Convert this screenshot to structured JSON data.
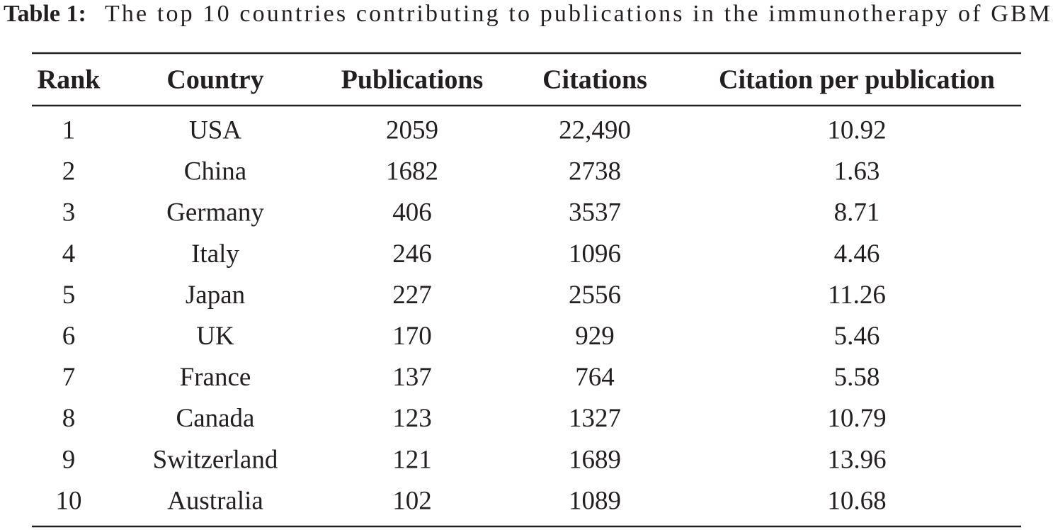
{
  "caption": {
    "label": "Table 1:",
    "text": "The top 10 countries contributing to publications in the immunotherapy of GBM"
  },
  "table": {
    "header": [
      "Rank",
      "Country",
      "Publications",
      "Citations",
      "Citation per publication"
    ],
    "rows": [
      [
        "1",
        "USA",
        "2059",
        "22,490",
        "10.92"
      ],
      [
        "2",
        "China",
        "1682",
        "2738",
        "1.63"
      ],
      [
        "3",
        "Germany",
        "406",
        "3537",
        "8.71"
      ],
      [
        "4",
        "Italy",
        "246",
        "1096",
        "4.46"
      ],
      [
        "5",
        "Japan",
        "227",
        "2556",
        "11.26"
      ],
      [
        "6",
        "UK",
        "170",
        "929",
        "5.46"
      ],
      [
        "7",
        "France",
        "137",
        "764",
        "5.58"
      ],
      [
        "8",
        "Canada",
        "123",
        "1327",
        "10.79"
      ],
      [
        "9",
        "Switzerland",
        "121",
        "1689",
        "13.96"
      ],
      [
        "10",
        "Australia",
        "102",
        "1089",
        "10.68"
      ]
    ]
  }
}
